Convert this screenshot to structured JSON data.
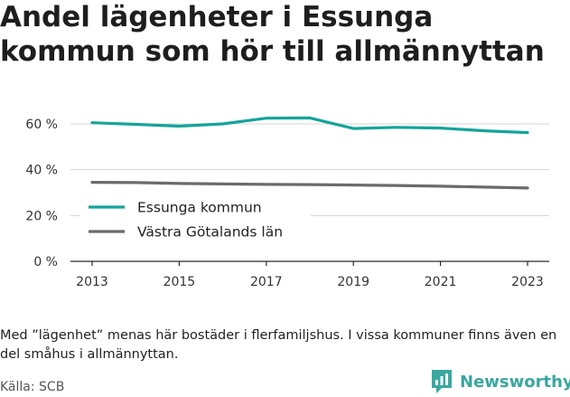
{
  "title": "Andel lägenheter i Essunga kommun som hör till allmännyttan",
  "note": "Med ”lägenhet” menas här bostäder i flerfamiljshus. I vissa kommuner finns även en del småhus i allmännyttan.",
  "source": "Källa: SCB",
  "brand": {
    "name": "Newsworthy",
    "icon": "newsworthy-logo-icon",
    "color": "#3aa7a0"
  },
  "chart_data": {
    "type": "line",
    "title": "Andel lägenheter i Essunga kommun som hör till allmännyttan",
    "x": [
      2013,
      2014,
      2015,
      2016,
      2017,
      2018,
      2019,
      2020,
      2021,
      2022,
      2023
    ],
    "x_ticks": [
      "2013",
      "2015",
      "2017",
      "2019",
      "2021",
      "2023"
    ],
    "y_ticks": [
      "0 %",
      "20 %",
      "40 %",
      "60 %"
    ],
    "ylim": [
      0,
      70
    ],
    "grid": true,
    "legend_position": "bottom-left",
    "series": [
      {
        "name": "Essunga kommun",
        "color": "#14a49a",
        "values": [
          60.5,
          59.8,
          59.0,
          60.0,
          62.5,
          62.6,
          58.0,
          58.5,
          58.2,
          57.0,
          56.2
        ]
      },
      {
        "name": "Västra Götalands län",
        "color": "#6c6a6e",
        "values": [
          34.5,
          34.4,
          34.0,
          33.8,
          33.6,
          33.5,
          33.3,
          33.1,
          32.8,
          32.4,
          32.0
        ]
      }
    ]
  }
}
